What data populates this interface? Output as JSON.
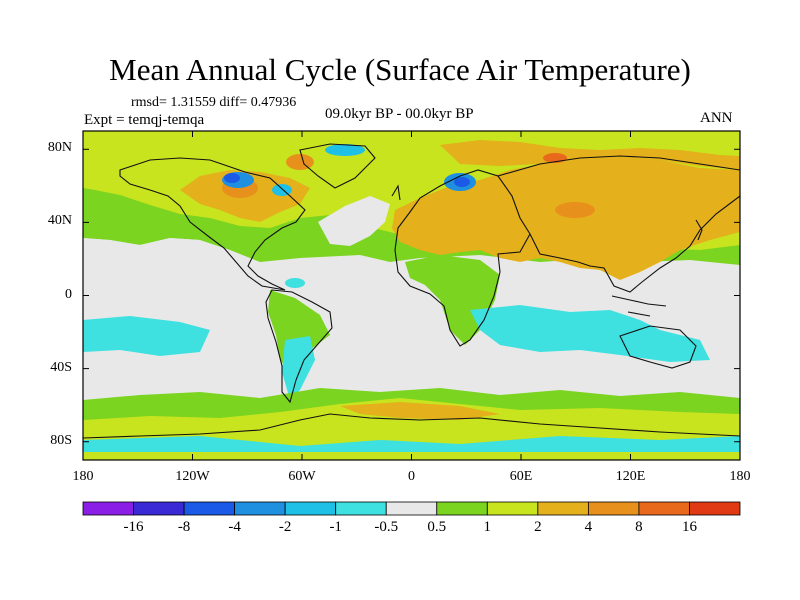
{
  "title": "Mean Annual Cycle (Surface Air Temperature)",
  "stats": "rmsd= 1.31559 diff= 0.47936",
  "experiment": "Expt = temqj-temqa",
  "period": "09.0kyr BP - 00.0kyr BP",
  "season": "ANN",
  "lat_ticks": [
    "80N",
    "40N",
    "0",
    "40S",
    "80S"
  ],
  "lat_values": [
    80,
    40,
    0,
    -40,
    -80
  ],
  "lon_ticks": [
    "180",
    "120W",
    "60W",
    "0",
    "60E",
    "120E",
    "180"
  ],
  "lon_values": [
    -180,
    -120,
    -60,
    0,
    60,
    120,
    180
  ],
  "colorbar": {
    "labels": [
      "-16",
      "-8",
      "-4",
      "-2",
      "-1",
      "-0.5",
      "0.5",
      "1",
      "2",
      "4",
      "8",
      "16"
    ],
    "colors": [
      "#8a1ee6",
      "#3a2ad6",
      "#1a5ae6",
      "#1f90e0",
      "#1fc0e6",
      "#3ee0e0",
      "#e8e8e8",
      "#7ad420",
      "#c8e41e",
      "#e4b01c",
      "#e8901c",
      "#e8681c",
      "#e03a14"
    ]
  },
  "colors": {
    "neutral": "#e8e8e8",
    "coast": "#111111"
  }
}
